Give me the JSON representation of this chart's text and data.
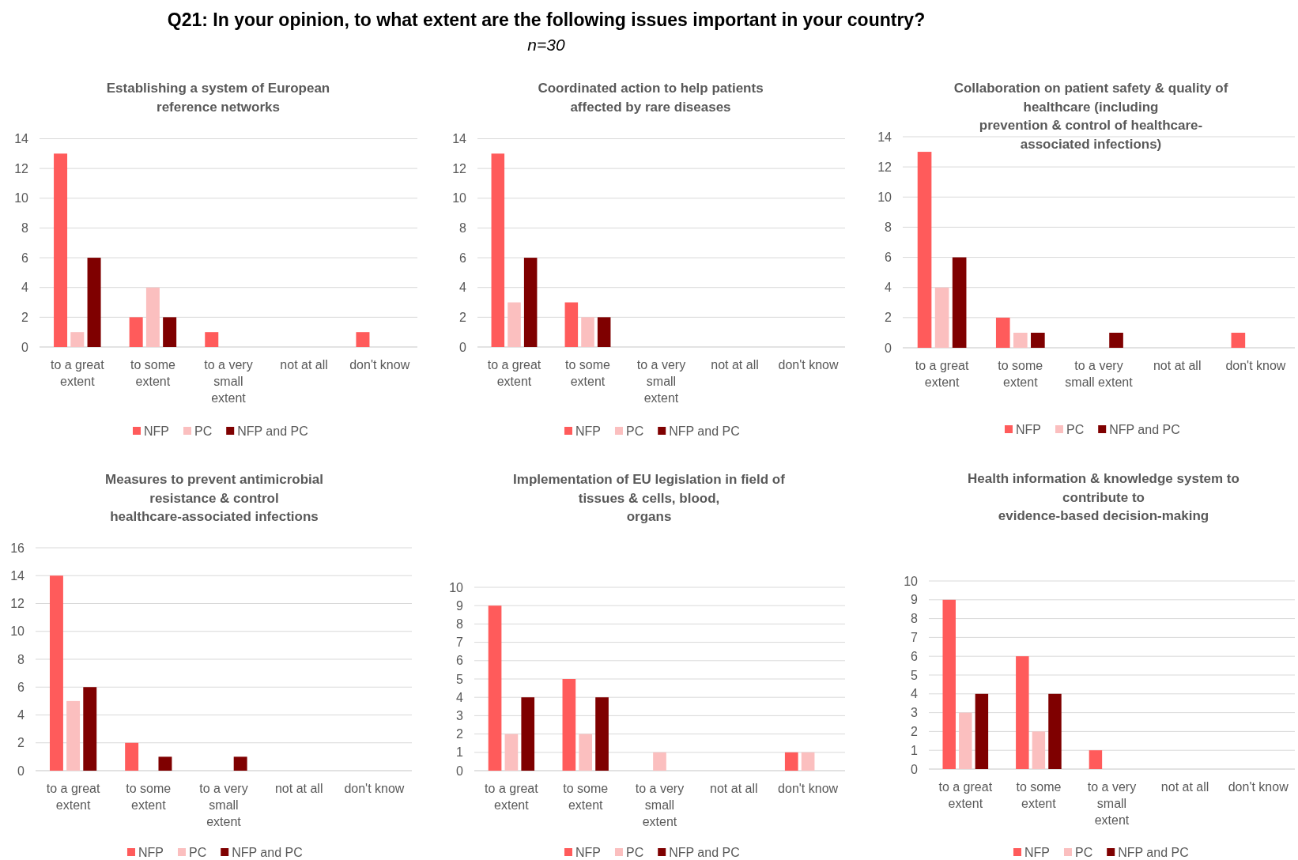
{
  "chart_data": [
    {
      "type": "bar",
      "title": "Establishing a system of European\nreference networks",
      "annotations": [
        "Q21: In your opinion, to what extent are the following issues important in your country?",
        "n=30"
      ],
      "categories": [
        "to a great extent",
        "to some extent",
        "to a very small extent",
        "not at all",
        "don't know"
      ],
      "series": [
        {
          "name": "NFP",
          "color": "#ff5b5b",
          "values": [
            13,
            2,
            1,
            0,
            1
          ]
        },
        {
          "name": "PC",
          "color": "#fbbfbf",
          "values": [
            1,
            4,
            0,
            0,
            0
          ]
        },
        {
          "name": "NFP and PC",
          "color": "#7f0000",
          "values": [
            6,
            2,
            0,
            0,
            0
          ]
        }
      ],
      "ylim": [
        0,
        14
      ],
      "yticks": [
        0,
        2,
        4,
        6,
        8,
        10,
        12,
        14
      ],
      "grid": "y",
      "legend": "bottom"
    },
    {
      "type": "bar",
      "title": "Coordinated action to help patients\naffected by rare diseases",
      "categories": [
        "to a great extent",
        "to some extent",
        "to a very small extent",
        "not at all",
        "don't know"
      ],
      "series": [
        {
          "name": "NFP",
          "color": "#ff5b5b",
          "values": [
            13,
            3,
            0,
            0,
            0
          ]
        },
        {
          "name": "PC",
          "color": "#fbbfbf",
          "values": [
            3,
            2,
            0,
            0,
            0
          ]
        },
        {
          "name": "NFP and PC",
          "color": "#7f0000",
          "values": [
            6,
            2,
            0,
            0,
            0
          ]
        }
      ],
      "ylim": [
        0,
        14
      ],
      "yticks": [
        0,
        2,
        4,
        6,
        8,
        10,
        12,
        14
      ],
      "grid": "y",
      "legend": "bottom"
    },
    {
      "type": "bar",
      "title": "Collaboration on patient safety & quality of\nhealthcare (including\nprevention & control of healthcare-\nassociated infections)",
      "categories": [
        "to a great extent",
        "to some extent",
        "to a very small extent",
        "not at all",
        "don't know"
      ],
      "series": [
        {
          "name": "NFP",
          "color": "#ff5b5b",
          "values": [
            13,
            2,
            0,
            0,
            1
          ]
        },
        {
          "name": "PC",
          "color": "#fbbfbf",
          "values": [
            4,
            1,
            0,
            0,
            0
          ]
        },
        {
          "name": "NFP and PC",
          "color": "#7f0000",
          "values": [
            6,
            1,
            1,
            0,
            0
          ]
        }
      ],
      "ylim": [
        0,
        14
      ],
      "yticks": [
        0,
        2,
        4,
        6,
        8,
        10,
        12,
        14
      ],
      "grid": "y",
      "legend": "bottom"
    },
    {
      "type": "bar",
      "title": "Measures to prevent antimicrobial\nresistance & control\nhealthcare-associated infections",
      "categories": [
        "to a great extent",
        "to some extent",
        "to a very small extent",
        "not at all",
        "don't know"
      ],
      "series": [
        {
          "name": "NFP",
          "color": "#ff5b5b",
          "values": [
            14,
            2,
            0,
            0,
            0
          ]
        },
        {
          "name": "PC",
          "color": "#fbbfbf",
          "values": [
            5,
            0,
            0,
            0,
            0
          ]
        },
        {
          "name": "NFP and PC",
          "color": "#7f0000",
          "values": [
            6,
            1,
            1,
            0,
            0
          ]
        }
      ],
      "ylim": [
        0,
        16
      ],
      "yticks": [
        0,
        2,
        4,
        6,
        8,
        10,
        12,
        14,
        16
      ],
      "grid": "y",
      "legend": "bottom"
    },
    {
      "type": "bar",
      "title": "Implementation of EU legislation in field of\ntissues & cells, blood,\norgans",
      "categories": [
        "to a great extent",
        "to some extent",
        "to a very small extent",
        "not at all",
        "don't know"
      ],
      "series": [
        {
          "name": "NFP",
          "color": "#ff5b5b",
          "values": [
            9,
            5,
            0,
            0,
            1
          ]
        },
        {
          "name": "PC",
          "color": "#fbbfbf",
          "values": [
            2,
            2,
            1,
            0,
            1
          ]
        },
        {
          "name": "NFP and PC",
          "color": "#7f0000",
          "values": [
            4,
            4,
            0,
            0,
            0
          ]
        }
      ],
      "ylim": [
        0,
        10
      ],
      "yticks": [
        0,
        1,
        2,
        3,
        4,
        5,
        6,
        7,
        8,
        9,
        10
      ],
      "grid": "y",
      "legend": "bottom"
    },
    {
      "type": "bar",
      "title": "Health information & knowledge system to\ncontribute to\nevidence-based decision-making",
      "categories": [
        "to a great extent",
        "to some extent",
        "to a very small extent",
        "not at all",
        "don't know"
      ],
      "series": [
        {
          "name": "NFP",
          "color": "#ff5b5b",
          "values": [
            9,
            6,
            1,
            0,
            0
          ]
        },
        {
          "name": "PC",
          "color": "#fbbfbf",
          "values": [
            3,
            2,
            0,
            0,
            0
          ]
        },
        {
          "name": "NFP and PC",
          "color": "#7f0000",
          "values": [
            4,
            4,
            0,
            0,
            0
          ]
        }
      ],
      "ylim": [
        0,
        10
      ],
      "yticks": [
        0,
        1,
        2,
        3,
        4,
        5,
        6,
        7,
        8,
        9,
        10
      ],
      "grid": "y",
      "legend": "bottom"
    }
  ]
}
